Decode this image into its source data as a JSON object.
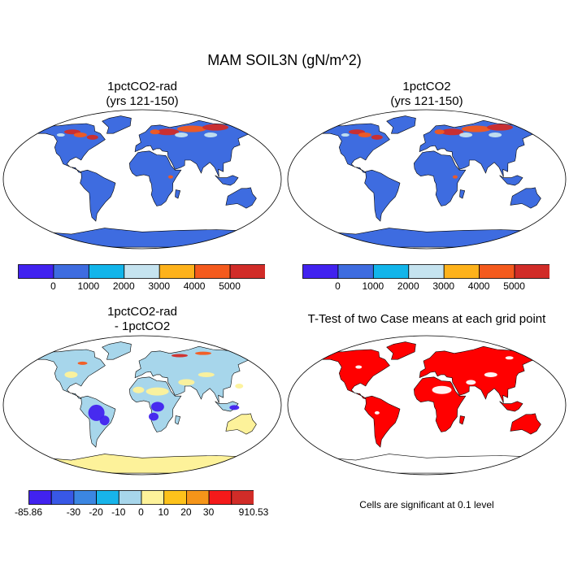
{
  "figure": {
    "title": "MAM SOIL3N (gN/m^2)"
  },
  "panels": [
    {
      "title_line1": "1pctCO2-rad",
      "title_line2": "(yrs 121-150)"
    },
    {
      "title_line1": "1pctCO2",
      "title_line2": "(yrs 121-150)"
    },
    {
      "title_line1": "1pctCO2-rad",
      "title_line2": "- 1pctCO2"
    },
    {
      "title_line1": "T-Test of two Case means at each grid point",
      "title_line2": ""
    }
  ],
  "colorbars": {
    "abs": {
      "colors": [
        "#4122ef",
        "#3e6ce0",
        "#12b5ea",
        "#c5e3ef",
        "#fdb21b",
        "#f45a1d",
        "#d12c28"
      ],
      "labels": [
        "0",
        "1000",
        "2000",
        "3000",
        "4000",
        "5000"
      ]
    },
    "diff": {
      "colors": [
        "#4122ef",
        "#3858e6",
        "#3b86e2",
        "#17b4ea",
        "#a7d6eb",
        "#fdf29a",
        "#fdc21b",
        "#f59519",
        "#f41a1a",
        "#d12c28"
      ],
      "labels": [
        "-85.86",
        "-30",
        "-20",
        "-10",
        "0",
        "10",
        "20",
        "30",
        "910.53"
      ]
    }
  },
  "map_colors": {
    "abs_land": "#3e6ce0",
    "abs_high1": "#d12c28",
    "abs_high2": "#f45a1d",
    "abs_high3": "#c5e3ef",
    "diff_land": "#a7d6eb",
    "diff_pos": "#fdf29a",
    "diff_neg": "#4122ef",
    "sig": "#ff0000"
  },
  "note": "Cells are significant at 0.1 level"
}
